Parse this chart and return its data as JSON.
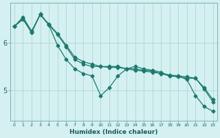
{
  "xlabel": "Humidex (Indice chaleur)",
  "background_color": "#d4f0f0",
  "grid_color": "#afd8d0",
  "line_color": "#1a7a6e",
  "x": [
    0,
    1,
    2,
    3,
    4,
    5,
    6,
    7,
    8,
    9,
    10,
    11,
    12,
    13,
    14,
    15,
    16,
    17,
    18,
    19,
    20,
    21,
    22,
    23
  ],
  "line1": [
    6.35,
    6.55,
    6.25,
    6.6,
    6.4,
    6.2,
    5.95,
    5.7,
    5.6,
    5.55,
    5.5,
    5.5,
    5.5,
    5.45,
    5.45,
    5.42,
    5.4,
    5.35,
    5.32,
    5.3,
    5.28,
    5.25,
    5.05,
    4.8
  ],
  "line2": [
    6.35,
    6.52,
    6.22,
    6.62,
    6.38,
    5.95,
    5.65,
    5.45,
    5.35,
    5.3,
    4.88,
    5.05,
    5.3,
    5.45,
    5.5,
    5.45,
    5.42,
    5.38,
    5.3,
    5.3,
    5.22,
    4.88,
    4.65,
    4.55
  ],
  "line3": [
    6.35,
    6.5,
    6.22,
    6.6,
    6.38,
    6.18,
    5.92,
    5.65,
    5.55,
    5.5,
    5.5,
    5.48,
    5.48,
    5.45,
    5.42,
    5.4,
    5.38,
    5.35,
    5.3,
    5.28,
    5.25,
    5.25,
    5.02,
    4.75
  ],
  "yticks": [
    5,
    6
  ],
  "ylim": [
    4.35,
    6.85
  ],
  "xlim": [
    -0.5,
    23.5
  ],
  "xtick_labels": [
    "0",
    "1",
    "2",
    "3",
    "4",
    "5",
    "6",
    "7",
    "8",
    "9",
    "10",
    "11",
    "12",
    "13",
    "14",
    "15",
    "16",
    "17",
    "18",
    "19",
    "20",
    "21",
    "22",
    "23"
  ]
}
